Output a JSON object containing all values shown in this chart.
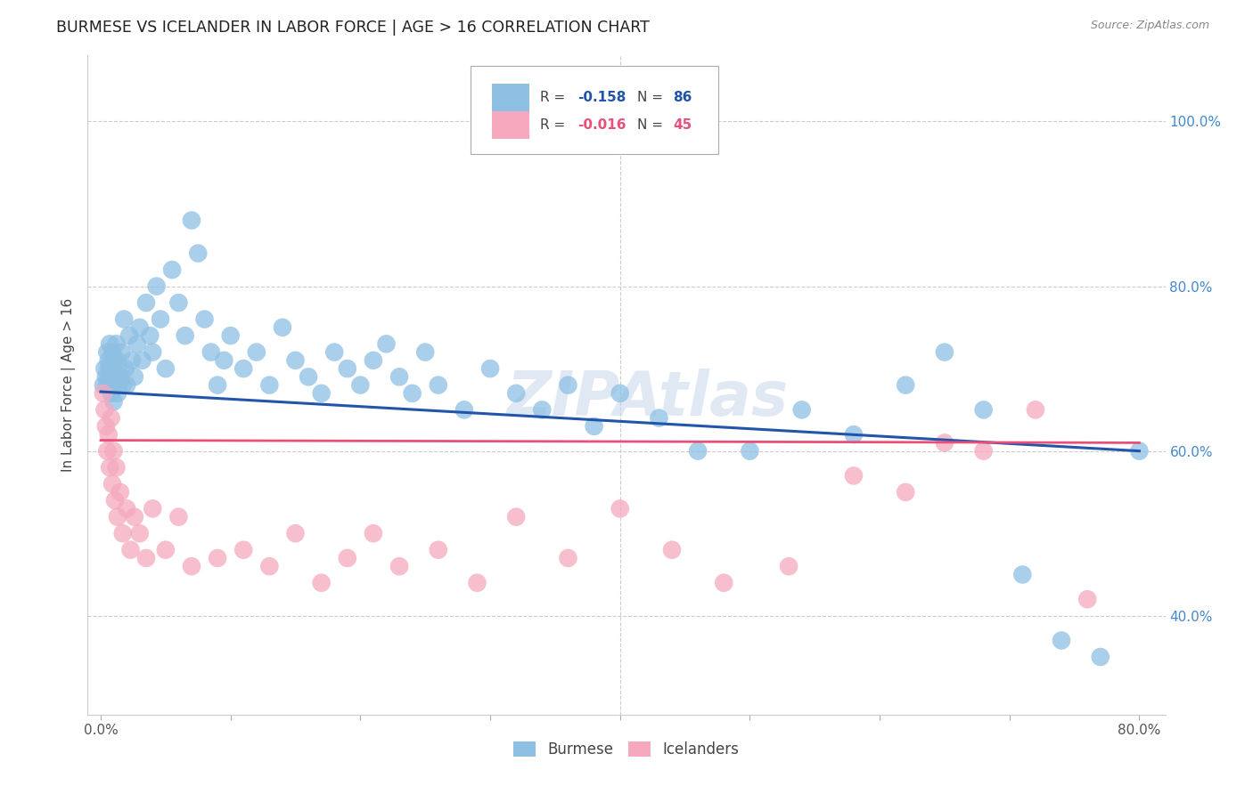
{
  "title": "BURMESE VS ICELANDER IN LABOR FORCE | AGE > 16 CORRELATION CHART",
  "source": "Source: ZipAtlas.com",
  "ylabel": "In Labor Force | Age > 16",
  "xlabel_ticks": [
    "0.0%",
    "",
    "",
    "",
    "",
    "",
    "",
    "",
    "80.0%"
  ],
  "xlabel_vals": [
    0.0,
    0.1,
    0.2,
    0.3,
    0.4,
    0.5,
    0.6,
    0.7,
    0.8
  ],
  "ylabel_ticks": [
    "40.0%",
    "60.0%",
    "80.0%",
    "100.0%"
  ],
  "ylabel_vals": [
    0.4,
    0.6,
    0.8,
    1.0
  ],
  "xlim": [
    -0.01,
    0.82
  ],
  "ylim": [
    0.28,
    1.08
  ],
  "blue_color": "#8ec0e4",
  "pink_color": "#f5a8be",
  "blue_line_color": "#2255aa",
  "pink_line_color": "#e8507a",
  "legend_label_blue": "Burmese",
  "legend_label_pink": "Icelanders",
  "watermark": "ZIPAtlas",
  "background_color": "#ffffff",
  "grid_color": "#cccccc",
  "axis_color": "#4488cc",
  "blue_trend_x": [
    0.0,
    0.8
  ],
  "blue_trend_y": [
    0.672,
    0.6
  ],
  "pink_trend_x": [
    0.0,
    0.8
  ],
  "pink_trend_y": [
    0.613,
    0.61
  ],
  "blue_x": [
    0.002,
    0.003,
    0.004,
    0.005,
    0.005,
    0.006,
    0.006,
    0.007,
    0.007,
    0.008,
    0.008,
    0.009,
    0.009,
    0.01,
    0.01,
    0.011,
    0.011,
    0.012,
    0.012,
    0.013,
    0.013,
    0.014,
    0.014,
    0.015,
    0.016,
    0.017,
    0.018,
    0.019,
    0.02,
    0.022,
    0.024,
    0.026,
    0.028,
    0.03,
    0.032,
    0.035,
    0.038,
    0.04,
    0.043,
    0.046,
    0.05,
    0.055,
    0.06,
    0.065,
    0.07,
    0.075,
    0.08,
    0.085,
    0.09,
    0.095,
    0.1,
    0.11,
    0.12,
    0.13,
    0.14,
    0.15,
    0.16,
    0.17,
    0.18,
    0.19,
    0.2,
    0.21,
    0.22,
    0.23,
    0.24,
    0.25,
    0.26,
    0.28,
    0.3,
    0.32,
    0.34,
    0.36,
    0.38,
    0.4,
    0.43,
    0.46,
    0.5,
    0.54,
    0.58,
    0.62,
    0.65,
    0.68,
    0.71,
    0.74,
    0.77,
    0.8
  ],
  "blue_y": [
    0.68,
    0.7,
    0.69,
    0.72,
    0.68,
    0.71,
    0.7,
    0.69,
    0.73,
    0.67,
    0.7,
    0.68,
    0.72,
    0.66,
    0.7,
    0.68,
    0.71,
    0.69,
    0.73,
    0.67,
    0.71,
    0.68,
    0.7,
    0.69,
    0.72,
    0.68,
    0.76,
    0.7,
    0.68,
    0.74,
    0.71,
    0.69,
    0.73,
    0.75,
    0.71,
    0.78,
    0.74,
    0.72,
    0.8,
    0.76,
    0.7,
    0.82,
    0.78,
    0.74,
    0.88,
    0.84,
    0.76,
    0.72,
    0.68,
    0.71,
    0.74,
    0.7,
    0.72,
    0.68,
    0.75,
    0.71,
    0.69,
    0.67,
    0.72,
    0.7,
    0.68,
    0.71,
    0.73,
    0.69,
    0.67,
    0.72,
    0.68,
    0.65,
    0.7,
    0.67,
    0.65,
    0.68,
    0.63,
    0.67,
    0.64,
    0.6,
    0.6,
    0.65,
    0.62,
    0.68,
    0.72,
    0.65,
    0.45,
    0.37,
    0.35,
    0.6
  ],
  "pink_x": [
    0.002,
    0.003,
    0.004,
    0.005,
    0.006,
    0.007,
    0.008,
    0.009,
    0.01,
    0.011,
    0.012,
    0.013,
    0.015,
    0.017,
    0.02,
    0.023,
    0.026,
    0.03,
    0.035,
    0.04,
    0.05,
    0.06,
    0.07,
    0.09,
    0.11,
    0.13,
    0.15,
    0.17,
    0.19,
    0.21,
    0.23,
    0.26,
    0.29,
    0.32,
    0.36,
    0.4,
    0.44,
    0.48,
    0.53,
    0.58,
    0.62,
    0.65,
    0.68,
    0.72,
    0.76
  ],
  "pink_y": [
    0.67,
    0.65,
    0.63,
    0.6,
    0.62,
    0.58,
    0.64,
    0.56,
    0.6,
    0.54,
    0.58,
    0.52,
    0.55,
    0.5,
    0.53,
    0.48,
    0.52,
    0.5,
    0.47,
    0.53,
    0.48,
    0.52,
    0.46,
    0.47,
    0.48,
    0.46,
    0.5,
    0.44,
    0.47,
    0.5,
    0.46,
    0.48,
    0.44,
    0.52,
    0.47,
    0.53,
    0.48,
    0.44,
    0.46,
    0.57,
    0.55,
    0.61,
    0.6,
    0.65,
    0.42
  ]
}
